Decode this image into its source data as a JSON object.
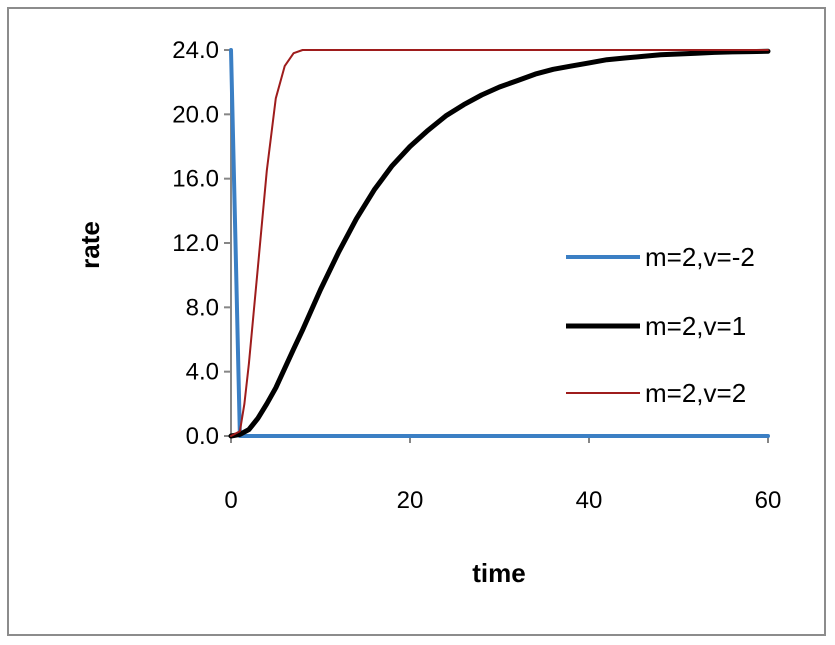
{
  "chart_data": {
    "type": "line",
    "title": "",
    "xlabel": "time",
    "ylabel": "rate",
    "xlim": [
      0,
      60
    ],
    "ylim": [
      0,
      24
    ],
    "x_ticks": [
      "0",
      "20",
      "40",
      "60"
    ],
    "x_tick_values": [
      0,
      20,
      40,
      60
    ],
    "y_ticks": [
      "0.0",
      "4.0",
      "8.0",
      "12.0",
      "16.0",
      "20.0",
      "24.0"
    ],
    "y_tick_values": [
      0,
      4,
      8,
      12,
      16,
      20,
      24
    ],
    "grid": false,
    "legend_position": "right",
    "series": [
      {
        "name": "m=2,v=-2",
        "color": "#3b7fc4",
        "x": [
          0,
          0.5,
          1,
          2,
          5,
          10,
          20,
          30,
          40,
          50,
          60
        ],
        "y": [
          24.0,
          12.0,
          0.0,
          0.0,
          0.0,
          0.0,
          0.0,
          0.0,
          0.0,
          0.0,
          0.0
        ]
      },
      {
        "name": "m=2,v=1",
        "color": "#000000",
        "x": [
          0,
          1,
          2,
          3,
          4,
          5,
          6,
          7,
          8,
          10,
          12,
          14,
          16,
          18,
          20,
          22,
          24,
          26,
          28,
          30,
          32,
          34,
          36,
          38,
          40,
          42,
          44,
          46,
          48,
          50,
          52,
          54,
          56,
          58,
          60
        ],
        "y": [
          0.0,
          0.1,
          0.4,
          1.1,
          2.0,
          3.0,
          4.2,
          5.4,
          6.6,
          9.1,
          11.4,
          13.5,
          15.3,
          16.8,
          18.0,
          19.0,
          19.9,
          20.6,
          21.2,
          21.7,
          22.1,
          22.5,
          22.8,
          23.0,
          23.2,
          23.4,
          23.5,
          23.6,
          23.7,
          23.75,
          23.8,
          23.85,
          23.88,
          23.9,
          23.92
        ]
      },
      {
        "name": "m=2,v=2",
        "color": "#9e1c1c",
        "x": [
          0,
          1,
          1.5,
          2,
          3,
          4,
          5,
          6,
          7,
          8,
          9,
          10,
          20,
          30,
          40,
          50,
          60
        ],
        "y": [
          0.0,
          0.3,
          2.0,
          4.5,
          10.5,
          16.5,
          21.0,
          23.0,
          23.8,
          24.0,
          24.0,
          24.0,
          24.0,
          24.0,
          24.0,
          24.0,
          24.0
        ]
      }
    ]
  }
}
